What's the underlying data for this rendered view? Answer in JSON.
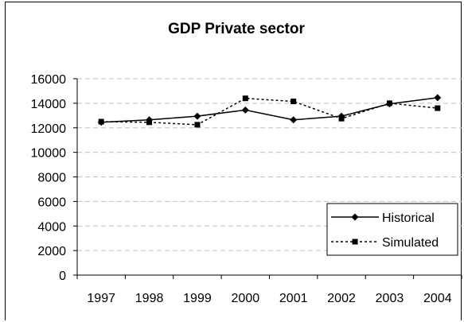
{
  "chart_data": {
    "type": "line",
    "title": "GDP Private sector",
    "categories": [
      "1997",
      "1998",
      "1999",
      "2000",
      "2001",
      "2002",
      "2003",
      "2004"
    ],
    "ylim": [
      0,
      16000
    ],
    "yticks": [
      "0",
      "2000",
      "4000",
      "6000",
      "8000",
      "10000",
      "12000",
      "14000",
      "16000"
    ],
    "grid": "horizontal-dashed",
    "legend_position": "bottom-right",
    "series": [
      {
        "name": "Historical",
        "values": [
          12450,
          12650,
          12950,
          13450,
          12650,
          12950,
          13950,
          14450
        ],
        "style": "solid",
        "marker": "diamond",
        "color": "#000000"
      },
      {
        "name": "Simulated",
        "values": [
          12500,
          12450,
          12250,
          14400,
          14150,
          12750,
          14000,
          13600
        ],
        "style": "dotted",
        "marker": "square",
        "color": "#000000"
      }
    ]
  }
}
